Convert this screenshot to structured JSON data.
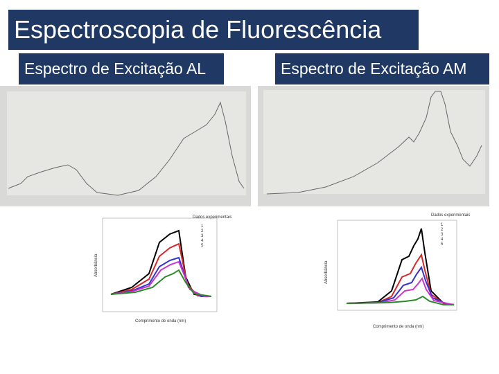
{
  "slide": {
    "title": "Espectroscopia de Fluorescência",
    "panels": [
      {
        "heading": "Espectro de Excitação AL",
        "plot": {
          "legend_title": "Dados experimentais",
          "legend": [
            "1",
            "2",
            "3",
            "4",
            "5"
          ],
          "xlabel": "Comprimento de onda (nm)",
          "ylabel": "Absorbância"
        }
      },
      {
        "heading": "Espectro de Excitação AM",
        "plot": {
          "legend_title": "Dados experimentais",
          "legend": [
            "1",
            "2",
            "3",
            "4",
            "5"
          ],
          "xlabel": "Comprimento de onda (nm)",
          "ylabel": "Absorbância"
        }
      }
    ]
  }
}
